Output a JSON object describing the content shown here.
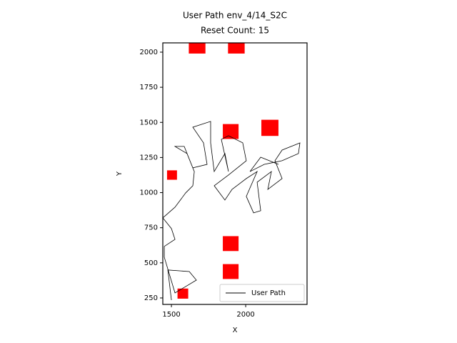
{
  "chart_data": {
    "type": "line",
    "title": "User Path env_4/14_S2C",
    "subtitle": "Reset Count: 15",
    "x_label": "X",
    "y_label": "Y",
    "xlim": [
      1442,
      2413
    ],
    "ylim": [
      204,
      2066
    ],
    "xticks": [
      1500,
      2000
    ],
    "yticks": [
      250,
      500,
      750,
      1000,
      1250,
      1500,
      1750,
      2000
    ],
    "legend": "lower right",
    "series": [
      {
        "name": "User Path",
        "color": "#000000",
        "x": [
          1500,
          1476,
          1620,
          1668,
          1524,
          1452,
          1452,
          1524,
          1500,
          1442,
          1524,
          1596,
          1644,
          1654,
          1605,
          1524,
          1586,
          1644,
          1740,
          1716,
          1644,
          1764,
          1764,
          1788,
          1860,
          1884,
          1836,
          1884,
          1980,
          2004,
          1884,
          1788,
          1860,
          1908,
          2004,
          2077,
          2004,
          2053,
          2101,
          2077,
          2173,
          2149,
          2245,
          2197,
          2245,
          2365,
          2355,
          2245,
          2125,
          2029,
          2101,
          2221
        ],
        "values": [
          235,
          449,
          438,
          377,
          286,
          540,
          617,
          667,
          744,
          820,
          896,
          998,
          1049,
          1150,
          1278,
          1329,
          1329,
          1176,
          1201,
          1354,
          1466,
          1507,
          1354,
          1150,
          1278,
          1150,
          1379,
          1405,
          1354,
          1227,
          1125,
          1049,
          947,
          1023,
          1100,
          1150,
          973,
          856,
          871,
          1074,
          1150,
          1023,
          1100,
          1227,
          1303,
          1354,
          1278,
          1227,
          1201,
          1150,
          1252,
          1201
        ]
      }
    ],
    "obstacles": {
      "color": "#ff0000",
      "x": [
        1673,
        1937,
        1899,
        2163,
        1504,
        1899,
        1899,
        1577
      ],
      "y": [
        2046,
        2046,
        1435,
        1461,
        1125,
        637,
        438,
        281
      ],
      "size": [
        112,
        112,
        106,
        115,
        67,
        106,
        106,
        72
      ]
    }
  }
}
